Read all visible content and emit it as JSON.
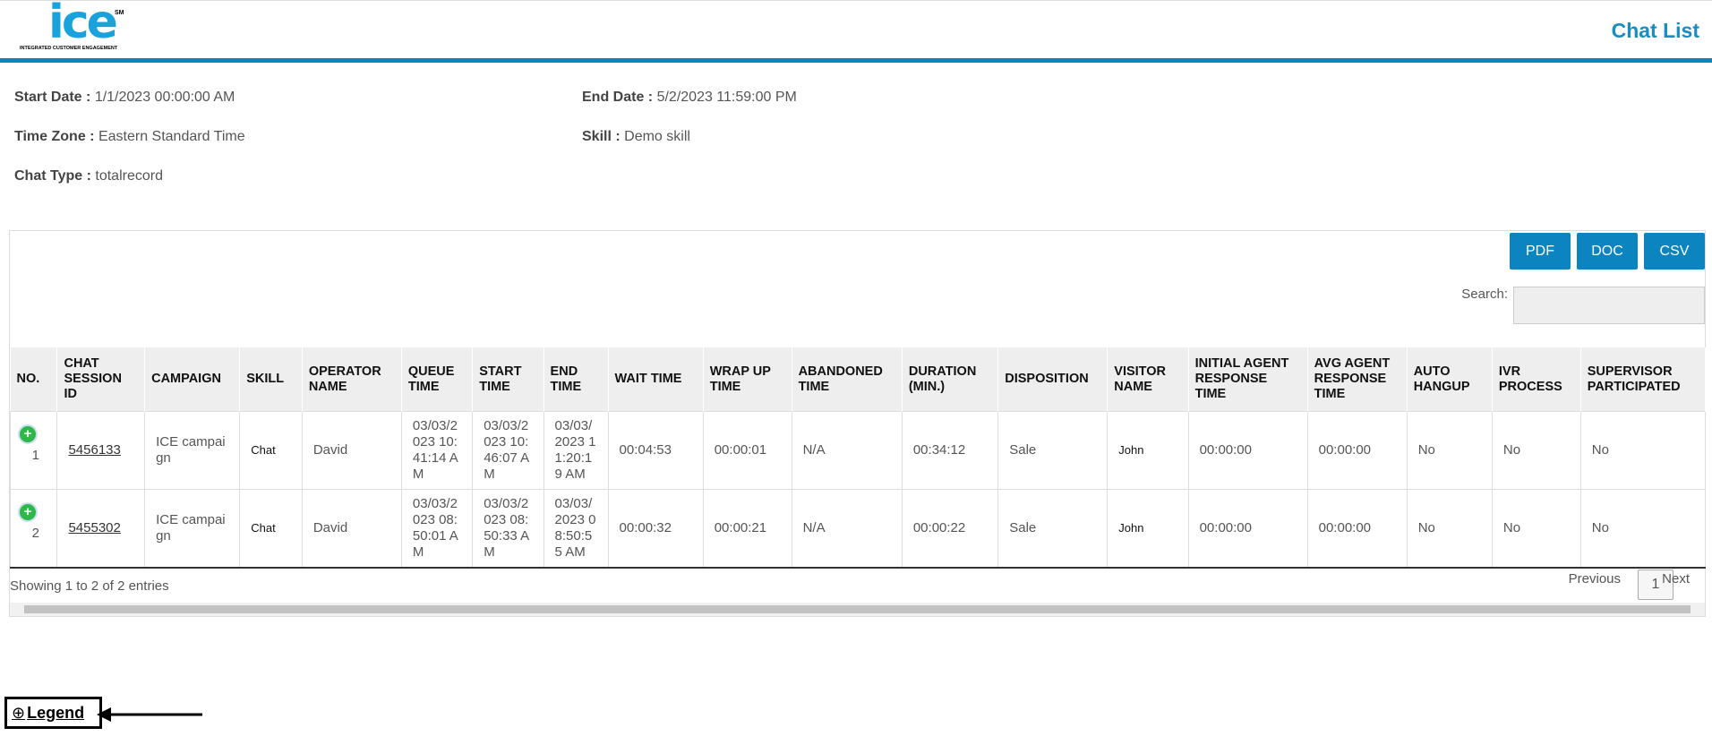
{
  "header": {
    "logo": {
      "mark": "ice",
      "sm": "SM",
      "tagline": "INTEGRATED CUSTOMER ENGAGEMENT"
    },
    "title": "Chat List"
  },
  "filters": [
    {
      "label": "Start Date :",
      "value": "1/1/2023 00:00:00 AM"
    },
    {
      "label": "End Date :",
      "value": "5/2/2023 11:59:00 PM"
    },
    {
      "label": "Time Zone :",
      "value": "Eastern Standard Time"
    },
    {
      "label": "Skill :",
      "value": "Demo skill"
    },
    {
      "label": "Chat Type :",
      "value": "totalrecord"
    }
  ],
  "buttons": [
    "PDF",
    "DOC",
    "CSV"
  ],
  "search": {
    "label": "Search:"
  },
  "table": {
    "columns": [
      "NO.",
      "CHAT SESSION ID",
      "CAMPAIGN",
      "SKILL",
      "OPERATOR NAME",
      "QUEUE TIME",
      "START TIME",
      "END TIME",
      "WAIT TIME",
      "WRAP UP TIME",
      "ABANDONED TIME",
      "DURATION (MIN.)",
      "DISPOSITION",
      "VISITOR NAME",
      "INITIAL AGENT RESPONSE TIME",
      "AVG AGENT RESPONSE TIME",
      "AUTO HANGUP",
      "IVR PROCESS",
      "SUPERVISOR PARTICIPATED"
    ],
    "rows": [
      [
        "1",
        "5456133",
        "ICE campaign",
        "Chat",
        "David",
        "03/03/2023 10:41:14 AM",
        "03/03/2023 10:46:07 AM",
        "03/03/2023 11:20:19 AM",
        "00:04:53",
        "00:00:01",
        "N/A",
        "00:34:12",
        "Sale",
        "John",
        "00:00:00",
        "00:00:00",
        "No",
        "No",
        "No"
      ],
      [
        "2",
        "5455302",
        "ICE campaign",
        "Chat",
        "David",
        "03/03/2023 08:50:01 AM",
        "03/03/2023 08:50:33 AM",
        "03/03/2023 08:50:55 AM",
        "00:00:32",
        "00:00:21",
        "N/A",
        "00:00:22",
        "Sale",
        "John",
        "00:00:00",
        "00:00:00",
        "No",
        "No",
        "No"
      ]
    ]
  },
  "footer": {
    "info": "Showing 1 to 2 of 2 entries",
    "previous": "Previous",
    "page": "1",
    "next": "Next"
  },
  "legend": "Legend"
}
